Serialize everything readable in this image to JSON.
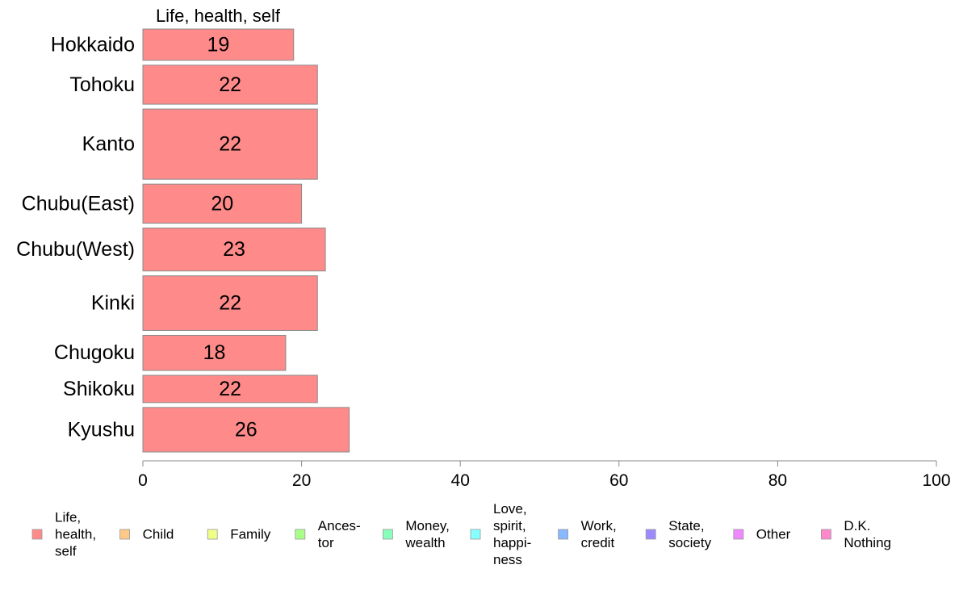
{
  "chart_data": {
    "type": "bar",
    "orientation": "horizontal",
    "title": "Life, health, self",
    "categories": [
      "Hokkaido",
      "Tohoku",
      "Kanto",
      "Chubu(East)",
      "Chubu(West)",
      "Kinki",
      "Chugoku",
      "Shikoku",
      "Kyushu"
    ],
    "relative_widths": [
      4,
      5,
      9,
      5,
      5.5,
      7,
      4.5,
      3.5,
      5.7
    ],
    "series": [
      {
        "name": "Life, health, self",
        "color": "#ff8a8a",
        "values": [
          19,
          22,
          22,
          20,
          23,
          22,
          18,
          22,
          26
        ],
        "value_labels": [
          "19",
          "22",
          "22",
          "20",
          "23",
          "22",
          "18",
          "22",
          "26"
        ]
      }
    ],
    "xlim": [
      0,
      100
    ],
    "xticks": [
      0,
      20,
      40,
      60,
      80,
      100
    ],
    "xtick_labels": [
      "0",
      "20",
      "40",
      "60",
      "80",
      "100"
    ],
    "grid": false,
    "legend": {
      "placement": "bottom",
      "entries": [
        {
          "label": [
            "Life,",
            "health,",
            "self"
          ],
          "color": "#ff8a8a"
        },
        {
          "label": [
            "Child"
          ],
          "color": "#ffc888"
        },
        {
          "label": [
            "Family"
          ],
          "color": "#f0ff88"
        },
        {
          "label": [
            "Ances-",
            "tor"
          ],
          "color": "#aaff88"
        },
        {
          "label": [
            "Money,",
            "wealth"
          ],
          "color": "#88ffbb"
        },
        {
          "label": [
            "Love,",
            "spirit,",
            "happi-",
            "ness"
          ],
          "color": "#88ffff"
        },
        {
          "label": [
            "Work,",
            "credit"
          ],
          "color": "#88b8ff"
        },
        {
          "label": [
            "State,",
            "society"
          ],
          "color": "#9e8aff"
        },
        {
          "label": [
            "Other"
          ],
          "color": "#f088ff"
        },
        {
          "label": [
            "D.K.",
            "Nothing"
          ],
          "color": "#ff88cc"
        }
      ]
    }
  }
}
